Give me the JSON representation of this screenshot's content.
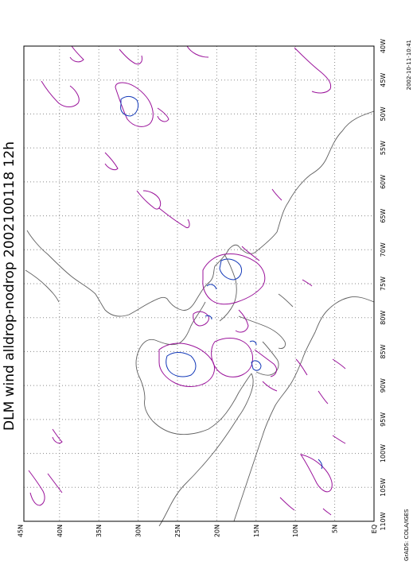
{
  "title": "DLM wind alldrop-nodrop 2002100118 12h",
  "timestamp": "2002-10-11-10:41",
  "credit": "GrADS: COLA/IGES",
  "lat_labels": [
    "EQ",
    "5N",
    "10N",
    "15N",
    "20N",
    "25N",
    "30N",
    "35N",
    "40N",
    "45N"
  ],
  "lon_labels": [
    "110W",
    "105W",
    "100W",
    "95W",
    "90W",
    "85W",
    "80W",
    "75W",
    "70W",
    "65W",
    "60W",
    "55W",
    "50W",
    "45W",
    "40W"
  ],
  "colors": {
    "frame": "#000000",
    "grid": "#8a8a8a",
    "coast": "#606060",
    "contour_outer": "#9a129a",
    "contour_inner": "#1238b8"
  }
}
